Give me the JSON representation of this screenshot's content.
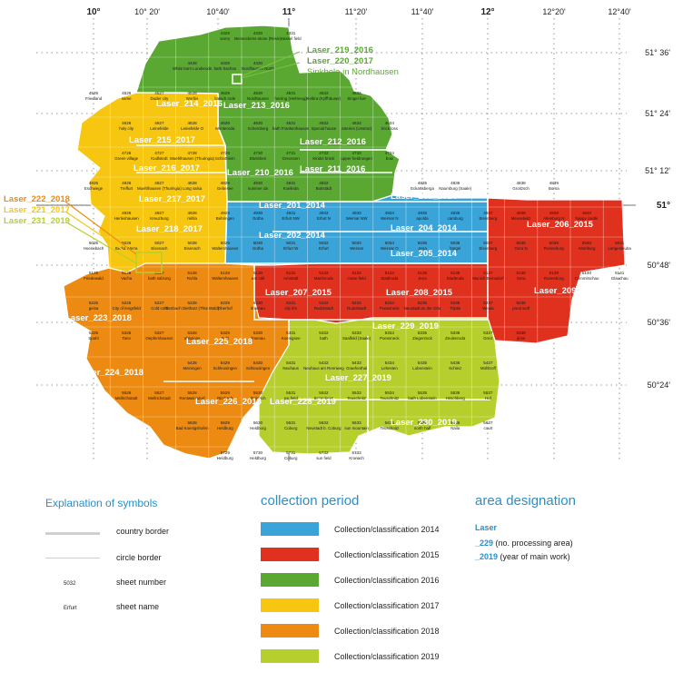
{
  "colors": {
    "y2014": "#3aa3d8",
    "y2015": "#e0301e",
    "y2016": "#5aa832",
    "y2017": "#f6c611",
    "y2018": "#ec8a12",
    "y2019": "#b6cf2c",
    "accent": "#2a8fc7"
  },
  "axes": {
    "lon_top": [
      "10°",
      "10° 20'",
      "10°40'",
      "11°",
      "11°20'",
      "11°40'",
      "12°",
      "12°20'",
      "12°40'"
    ],
    "lat_right": [
      "51° 36'",
      "51° 24'",
      "51° 12'",
      "51°",
      "50°48'",
      "50°36'",
      "50°24'"
    ]
  },
  "areas": [
    {
      "label": "Laser_214_2016",
      "year": "2016"
    },
    {
      "label": "Laser_213_2016",
      "year": "2016"
    },
    {
      "label": "Laser_212_2016",
      "year": "2016"
    },
    {
      "label": "Laser_211_2016",
      "year": "2016"
    },
    {
      "label": "Laser_210_2016",
      "year": "2016"
    },
    {
      "label": "Laser_215_2017",
      "year": "2017"
    },
    {
      "label": "Laser_216_2017",
      "year": "2017"
    },
    {
      "label": "Laser_217_2017",
      "year": "2017"
    },
    {
      "label": "Laser_218_2017",
      "year": "2017"
    },
    {
      "label": "Laser_201_2014",
      "year": "2014"
    },
    {
      "label": "Laser_202_2014",
      "year": "2014"
    },
    {
      "label": "Laser_203_2014",
      "year": "2014"
    },
    {
      "label": "Laser_204_2014",
      "year": "2014"
    },
    {
      "label": "Laser_205_2014",
      "year": "2014"
    },
    {
      "label": "Laser_206_2015",
      "year": "2015"
    },
    {
      "label": "Laser_207_2015",
      "year": "2015"
    },
    {
      "label": "Laser_208_2015",
      "year": "2015"
    },
    {
      "label": "Laser_209_2015",
      "year": "2015"
    },
    {
      "label": "Laser_223_2018",
      "year": "2018"
    },
    {
      "label": "Laser_224_2018",
      "year": "2018"
    },
    {
      "label": "Laser_225_2018",
      "year": "2018"
    },
    {
      "label": "Laser_226_2018",
      "year": "2018"
    },
    {
      "label": "Laser_227_2019",
      "year": "2019"
    },
    {
      "label": "Laser_228_2019",
      "year": "2019"
    },
    {
      "label": "Laser_229_2019",
      "year": "2019"
    },
    {
      "label": "Laser_230_2019",
      "year": "2019"
    }
  ],
  "callouts": {
    "north": [
      "Laser_219_2016",
      "Laser_220_2017",
      "Sinkhole in Nordhausen"
    ],
    "west": [
      "Laser_222_2018",
      "Laser_221_2017",
      "Laser_231_2019"
    ]
  },
  "sheets": [
    {
      "num": "4329",
      "name": "worry"
    },
    {
      "num": "4330",
      "name": "Benneckens-stone (Resin)"
    },
    {
      "num": "4331",
      "name": "Hassel field"
    },
    {
      "num": "4428",
      "name": "White born Lunderode"
    },
    {
      "num": "4429",
      "name": "bath Sachsa"
    },
    {
      "num": "4430",
      "name": "Nordhausen North"
    },
    {
      "num": "4525",
      "name": "Friedland"
    },
    {
      "num": "4526",
      "name": "same"
    },
    {
      "num": "4527",
      "name": "Duder city"
    },
    {
      "num": "4528",
      "name": "Worbis"
    },
    {
      "num": "4529",
      "name": "bleach rode"
    },
    {
      "num": "4530",
      "name": "Nordhausen"
    },
    {
      "num": "4531",
      "name": "herring (Helmeog)"
    },
    {
      "num": "4532",
      "name": "Kelbra (Kyffhäuser)"
    },
    {
      "num": "4533",
      "name": "Singer live"
    },
    {
      "num": "4626",
      "name": "holy city"
    },
    {
      "num": "4627",
      "name": "Leinefelde"
    },
    {
      "num": "4628",
      "name": "Leinefelde O"
    },
    {
      "num": "4629",
      "name": "Menteroda"
    },
    {
      "num": "4630",
      "name": "Schernberg"
    },
    {
      "num": "4631",
      "name": "bath Frankenhausen"
    },
    {
      "num": "4632",
      "name": "Special house"
    },
    {
      "num": "4633",
      "name": "arteries (Unstrut)"
    },
    {
      "num": "4634",
      "name": "brick loss"
    },
    {
      "num": "4726",
      "name": "Green village"
    },
    {
      "num": "4727",
      "name": "Kudlstedt"
    },
    {
      "num": "4728",
      "name": "Muehlhausen (Thuringia)"
    },
    {
      "num": "4729",
      "name": "Schlotheim"
    },
    {
      "num": "4730",
      "name": "Ebeleben"
    },
    {
      "num": "4731",
      "name": "Greussen"
    },
    {
      "num": "4732",
      "name": "Kindel brück"
    },
    {
      "num": "4733",
      "name": "upper heldrungen"
    },
    {
      "num": "4734",
      "name": "bow"
    },
    {
      "num": "4825",
      "name": "Eschwege"
    },
    {
      "num": "4826",
      "name": "Treffurt"
    },
    {
      "num": "4827",
      "name": "Muehlhausen (Thuringia)"
    },
    {
      "num": "4828",
      "name": "Long salsa"
    },
    {
      "num": "4829",
      "name": "Gebesee"
    },
    {
      "num": "4830",
      "name": "summer da"
    },
    {
      "num": "4831",
      "name": "Koelleda"
    },
    {
      "num": "4832",
      "name": "Buttstädt"
    },
    {
      "num": "4835",
      "name": "Eckartsberga"
    },
    {
      "num": "4836",
      "name": "Naumburg (Saale)"
    },
    {
      "num": "4838",
      "name": "Groitzsch"
    },
    {
      "num": "4839",
      "name": "Borna"
    },
    {
      "num": "4926",
      "name": "Herleshausen"
    },
    {
      "num": "4927",
      "name": "Kreuzburg"
    },
    {
      "num": "4928",
      "name": "mihla"
    },
    {
      "num": "4929",
      "name": "Behringen"
    },
    {
      "num": "4930",
      "name": "Gotha"
    },
    {
      "num": "4931",
      "name": "Erfurt NW"
    },
    {
      "num": "4932",
      "name": "Erfurt N"
    },
    {
      "num": "4933",
      "name": "Weimar NW"
    },
    {
      "num": "4934",
      "name": "Weimar N"
    },
    {
      "num": "4935",
      "name": "apolda"
    },
    {
      "num": "4936",
      "name": "camburg"
    },
    {
      "num": "4937",
      "name": "Eisenberg"
    },
    {
      "num": "4938",
      "name": "Meuselwitz"
    },
    {
      "num": "4939",
      "name": "Altenburg N"
    },
    {
      "num": "4940",
      "name": "happy castle"
    },
    {
      "num": "5025",
      "name": "Hoenebach"
    },
    {
      "num": "5026",
      "name": "Berka Werra"
    },
    {
      "num": "5027",
      "name": "Eisenach"
    },
    {
      "num": "5028",
      "name": "Eisenach"
    },
    {
      "num": "5029",
      "name": "Waltershausen"
    },
    {
      "num": "5030",
      "name": "Gotha"
    },
    {
      "num": "5031",
      "name": "Erfurt W"
    },
    {
      "num": "5032",
      "name": "Erfurt"
    },
    {
      "num": "5033",
      "name": "Weimar"
    },
    {
      "num": "5034",
      "name": "Weimar O"
    },
    {
      "num": "5035",
      "name": "Jena"
    },
    {
      "num": "5036",
      "name": "bürgel"
    },
    {
      "num": "5037",
      "name": "Eisenberg"
    },
    {
      "num": "5038",
      "name": "Gera N"
    },
    {
      "num": "5039",
      "name": "Ronneburg"
    },
    {
      "num": "5040",
      "name": "Altenburg"
    },
    {
      "num": "5041",
      "name": "Langenleuba"
    },
    {
      "num": "5125",
      "name": "Friedewald"
    },
    {
      "num": "5126",
      "name": "Vacha"
    },
    {
      "num": "5127",
      "name": "bath salzung"
    },
    {
      "num": "5128",
      "name": "Ruhla"
    },
    {
      "num": "5129",
      "name": "Waltershausen"
    },
    {
      "num": "5130",
      "name": "ear call"
    },
    {
      "num": "5131",
      "name": "Arnstadt"
    },
    {
      "num": "5132",
      "name": "Martinroda"
    },
    {
      "num": "5133",
      "name": "crane field"
    },
    {
      "num": "5134",
      "name": "Stadtroda"
    },
    {
      "num": "5135",
      "name": "Jena"
    },
    {
      "num": "5136",
      "name": "Stadtroda"
    },
    {
      "num": "5137",
      "name": "Munich Bernsdorf"
    },
    {
      "num": "5138",
      "name": "Gera"
    },
    {
      "num": "5139",
      "name": "Ronneburg"
    },
    {
      "num": "5140",
      "name": "Crimmitschau"
    },
    {
      "num": "5141",
      "name": "Glauchau"
    },
    {
      "num": "5225",
      "name": "geisa"
    },
    {
      "num": "5226",
      "name": "City of lengsfeld"
    },
    {
      "num": "5227",
      "name": "Cold cold"
    },
    {
      "num": "5228",
      "name": "Tambach Dietharz (Thür.Wald)"
    },
    {
      "num": "5229",
      "name": "Oberhof"
    },
    {
      "num": "5230",
      "name": "Ilmenau"
    },
    {
      "num": "5231",
      "name": "city Ilm"
    },
    {
      "num": "5232",
      "name": "Rudolstadt"
    },
    {
      "num": "5233",
      "name": "Rudolstadt"
    },
    {
      "num": "5234",
      "name": "Poessneck"
    },
    {
      "num": "5235",
      "name": "Neustadt an der Orla"
    },
    {
      "num": "5236",
      "name": "Triptis"
    },
    {
      "num": "5237",
      "name": "Weida"
    },
    {
      "num": "5238",
      "name": "pond wolf"
    },
    {
      "num": "5325",
      "name": "Spahl"
    },
    {
      "num": "5326",
      "name": "Tann"
    },
    {
      "num": "5327",
      "name": "Oepfershausen"
    },
    {
      "num": "5328",
      "name": "ablutions"
    },
    {
      "num": "5329",
      "name": "Suhl"
    },
    {
      "num": "5330",
      "name": "Ilmenau"
    },
    {
      "num": "5331",
      "name": "Koenigsee"
    },
    {
      "num": "5332",
      "name": "bath"
    },
    {
      "num": "5333",
      "name": "Saalfeld (Saale)"
    },
    {
      "num": "5334",
      "name": "Poessneck"
    },
    {
      "num": "5335",
      "name": "Ziegenrück"
    },
    {
      "num": "5336",
      "name": "Zeulenroda"
    },
    {
      "num": "5337",
      "name": "Greiz"
    },
    {
      "num": "5338",
      "name": "drive"
    },
    {
      "num": "5428",
      "name": "Meiningen"
    },
    {
      "num": "5429",
      "name": "Schleusingen"
    },
    {
      "num": "5430",
      "name": "Schleusingen"
    },
    {
      "num": "5431",
      "name": "Neuhaus"
    },
    {
      "num": "5432",
      "name": "Neuhaus am Rennweg"
    },
    {
      "num": "5433",
      "name": "Graefenthal"
    },
    {
      "num": "5434",
      "name": "Lehesten"
    },
    {
      "num": "5435",
      "name": "Lobenstein"
    },
    {
      "num": "5436",
      "name": "Schleiz"
    },
    {
      "num": "5437",
      "name": "Mühltroff"
    },
    {
      "num": "5526",
      "name": "Mellrichstadt"
    },
    {
      "num": "5527",
      "name": "Mellrichstadt"
    },
    {
      "num": "5528",
      "name": "Rentweinsdorf"
    },
    {
      "num": "5529",
      "name": "Rimbach"
    },
    {
      "num": "5530",
      "name": "Steinach"
    },
    {
      "num": "5531",
      "name": "Ice field"
    },
    {
      "num": "5532",
      "name": "Sonneberg"
    },
    {
      "num": "5533",
      "name": "Teuschnitz"
    },
    {
      "num": "5534",
      "name": "Teuschnitz"
    },
    {
      "num": "5535",
      "name": "bath Lobenstein"
    },
    {
      "num": "5536",
      "name": "Hirschberg"
    },
    {
      "num": "5537",
      "name": "Hof"
    },
    {
      "num": "5628",
      "name": "Bad Koenigshofen"
    },
    {
      "num": "5629",
      "name": "Heldburg"
    },
    {
      "num": "5630",
      "name": "Heldburg"
    },
    {
      "num": "5631",
      "name": "Coburg"
    },
    {
      "num": "5632",
      "name": "Neustadt b. Coburg"
    },
    {
      "num": "5633",
      "name": "sun mountain"
    },
    {
      "num": "5634",
      "name": "Teuschnitz"
    },
    {
      "num": "5635",
      "name": "north half"
    },
    {
      "num": "5636",
      "name": "Naila"
    },
    {
      "num": "5637",
      "name": "court"
    },
    {
      "num": "5729",
      "name": "Heldburg"
    },
    {
      "num": "5730",
      "name": "Heldburg"
    },
    {
      "num": "5731",
      "name": "Coburg"
    },
    {
      "num": "5732",
      "name": "sun field"
    },
    {
      "num": "5733",
      "name": "Kronach"
    }
  ],
  "legend": {
    "symbols_title": "Explanation of symbols",
    "symbols": [
      {
        "label": "country border"
      },
      {
        "label": "circle border"
      },
      {
        "label": "sheet number",
        "example": "5032"
      },
      {
        "label": "sheet name",
        "example": "Erfurt"
      }
    ],
    "period_title": "collection period",
    "periods": [
      {
        "label": "Collection/classification 2014",
        "color": "#3aa3d8"
      },
      {
        "label": "Collection/classification 2015",
        "color": "#e0301e"
      },
      {
        "label": "Collection/classification 2016",
        "color": "#5aa832"
      },
      {
        "label": "Collection/classification 2017",
        "color": "#f6c611"
      },
      {
        "label": "Collection/classification 2018",
        "color": "#ec8a12"
      },
      {
        "label": "Collection/classification 2019",
        "color": "#b6cf2c"
      }
    ],
    "area_title": "area designation",
    "area_word": "Laser",
    "area_lines": [
      {
        "code": "_229",
        "text": "(no. processing area)"
      },
      {
        "code": "_2019",
        "text": "(year of main work)"
      }
    ]
  }
}
